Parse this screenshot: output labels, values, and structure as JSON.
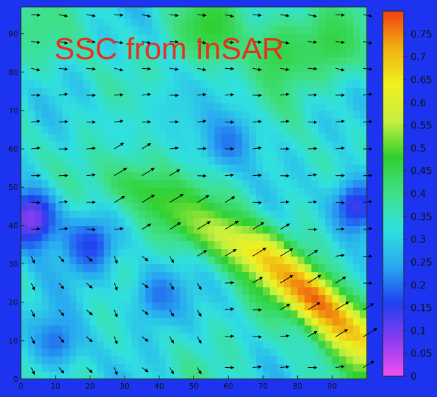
{
  "chart_data": {
    "type": "heatmap",
    "title": "SSC from InSAR",
    "xlabel": "",
    "ylabel": "",
    "xlim": [
      0,
      100
    ],
    "ylim": [
      0,
      97
    ],
    "x_ticks": [
      "0",
      "10",
      "20",
      "30",
      "40",
      "50",
      "60",
      "70",
      "80",
      "90"
    ],
    "y_ticks": [
      "0",
      "10",
      "20",
      "30",
      "40",
      "50",
      "60",
      "70",
      "80",
      "90"
    ],
    "colorbar": {
      "min": 0,
      "max": 0.8,
      "ticks": [
        "0",
        "0.05",
        "0.1",
        "0.15",
        "0.2",
        "0.25",
        "0.3",
        "0.35",
        "0.4",
        "0.45",
        "0.5",
        "0.55",
        "0.6",
        "0.65",
        "0.7",
        "0.75"
      ],
      "colormap": [
        "#f050f0",
        "#8a3cf0",
        "#2040f0",
        "#28a8f0",
        "#30e0e0",
        "#40e08a",
        "#30d030",
        "#c8f040",
        "#f0f020",
        "#f0b010",
        "#f04010"
      ]
    },
    "field_description": "Diagonal band of high SSC running from about (30,50) to (100,10), peaking ~0.8 near (83,22); background 0.2-0.5; low values (~0.1) at left around y=40.",
    "field_ridge": [
      [
        30,
        52,
        0.46
      ],
      [
        45,
        44,
        0.5
      ],
      [
        60,
        37,
        0.58
      ],
      [
        70,
        32,
        0.68
      ],
      [
        78,
        26,
        0.74
      ],
      [
        85,
        21,
        0.78
      ],
      [
        92,
        15,
        0.74
      ],
      [
        100,
        9,
        0.66
      ]
    ],
    "field_highs": [
      [
        55,
        92,
        0.48
      ],
      [
        75,
        85,
        0.46
      ],
      [
        90,
        88,
        0.46
      ],
      [
        5,
        92,
        0.4
      ]
    ],
    "field_lows": [
      [
        3,
        42,
        0.08
      ],
      [
        20,
        35,
        0.16
      ],
      [
        40,
        22,
        0.2
      ],
      [
        10,
        10,
        0.2
      ],
      [
        60,
        62,
        0.2
      ],
      [
        97,
        45,
        0.14
      ],
      [
        45,
        72,
        0.3
      ],
      [
        30,
        65,
        0.32
      ]
    ],
    "vectors": {
      "x": [
        3,
        11,
        19,
        27,
        35,
        43,
        51,
        59,
        67,
        75,
        83,
        91,
        99
      ],
      "y": [
        3,
        11,
        18,
        25,
        32,
        39,
        46,
        53,
        60,
        67,
        74,
        81,
        88,
        95
      ],
      "direction_note": "Arrows point mostly east; along the high-SSC band they rotate to northeast; in the lower-left region they point southeast/down."
    }
  },
  "colors": {
    "background": "#1c34f0",
    "title": "#e8301c",
    "arrows": "#000000",
    "frame": "#222222"
  }
}
